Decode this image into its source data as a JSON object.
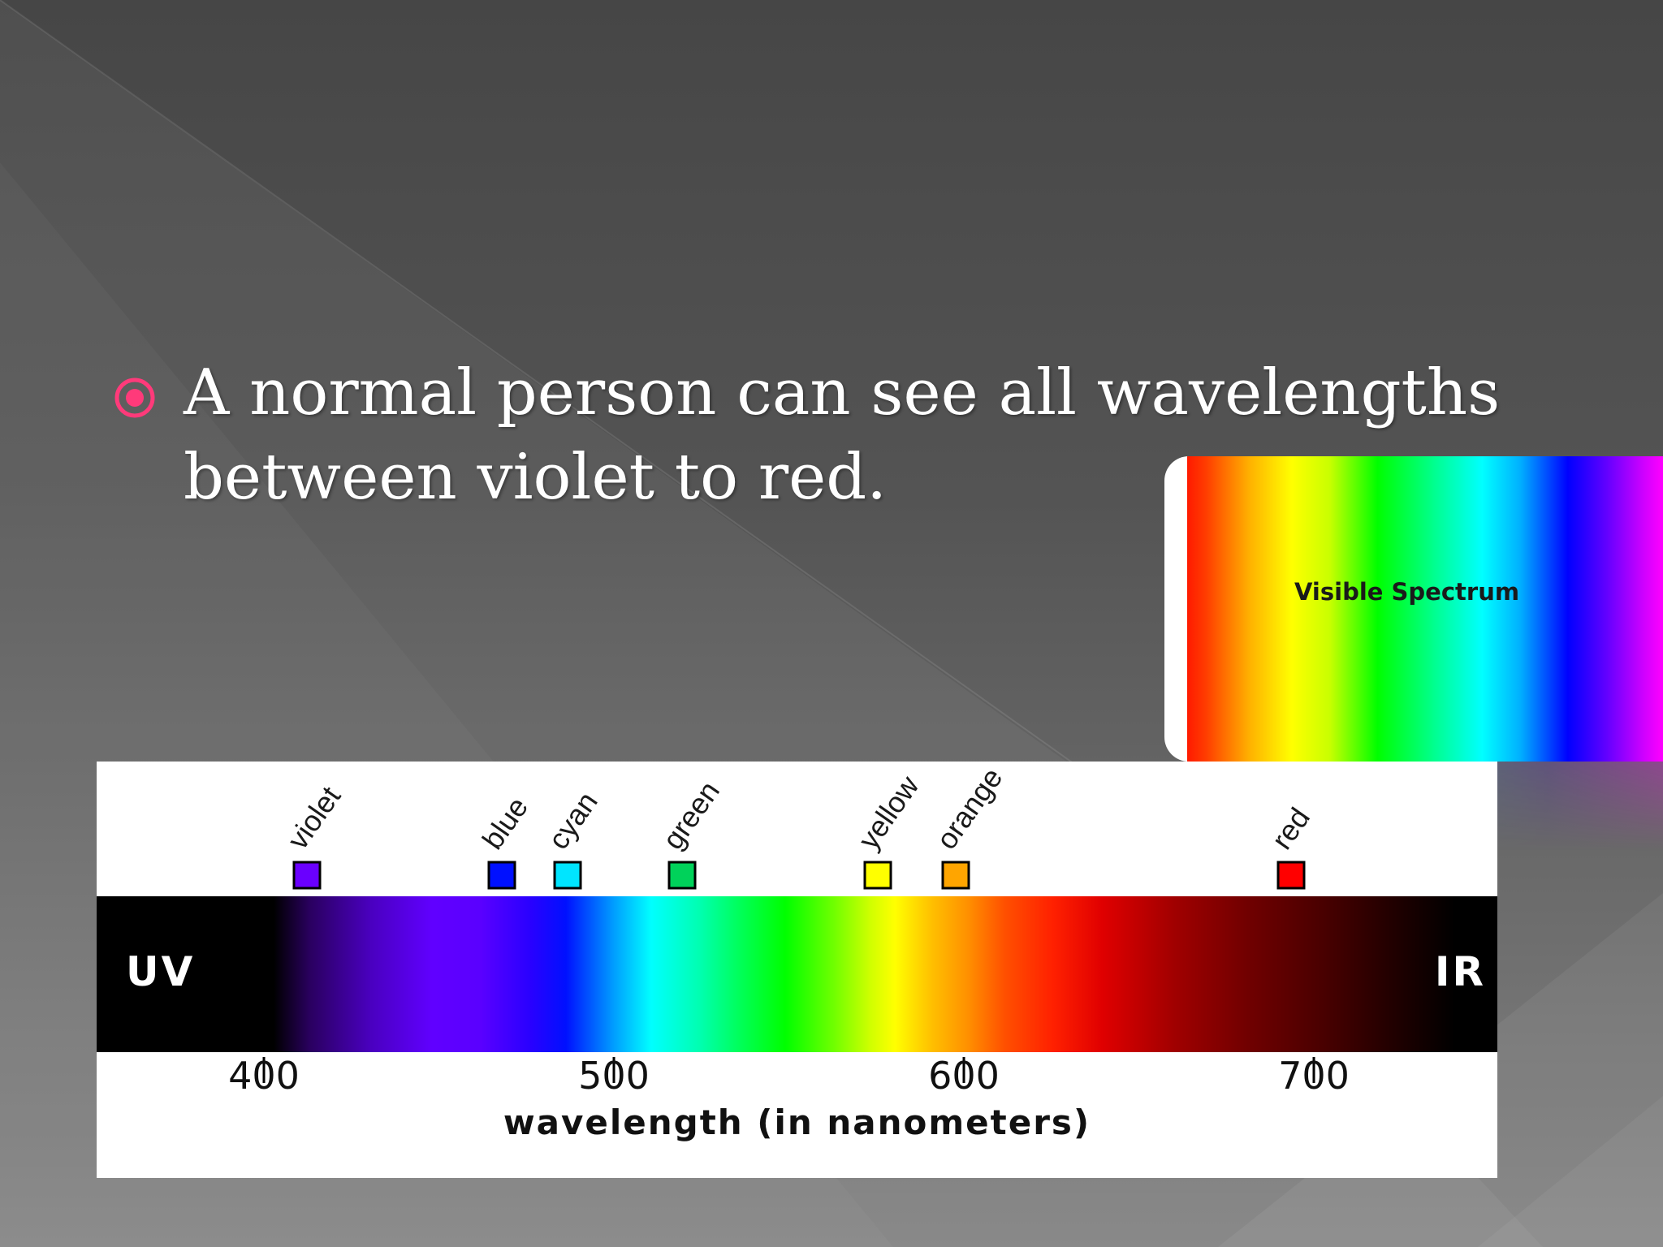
{
  "slide": {
    "bullet_text": "A normal person can see all wavelengths between violet to red.",
    "bullet_color": "#ff3a7a"
  },
  "visible_card": {
    "label": "Visible Spectrum"
  },
  "spectrum": {
    "left_label": "UV",
    "right_label": "IR",
    "axis_title": "wavelength (in nanometers)",
    "ticks": [
      "400",
      "500",
      "600",
      "700"
    ],
    "colors": [
      {
        "name": "violet",
        "hex": "#6a00ff"
      },
      {
        "name": "blue",
        "hex": "#0010ff"
      },
      {
        "name": "cyan",
        "hex": "#00e5ff"
      },
      {
        "name": "green",
        "hex": "#00d25a"
      },
      {
        "name": "yellow",
        "hex": "#ffff00"
      },
      {
        "name": "orange",
        "hex": "#ffa500"
      },
      {
        "name": "red",
        "hex": "#ff0000"
      }
    ]
  }
}
